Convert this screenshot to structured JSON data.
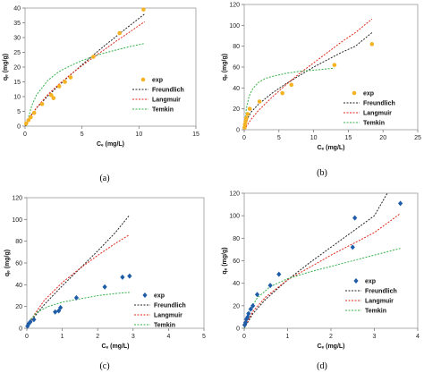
{
  "chart_data": [
    {
      "panel": "(a)",
      "type": "scatter",
      "xlabel": "Cₑ (mg/L)",
      "ylabel": "qₑ (mg/g)",
      "xlim": [
        0,
        15
      ],
      "ylim": [
        0,
        40
      ],
      "xticks": [
        0,
        5,
        10,
        15
      ],
      "yticks": [
        0,
        5,
        10,
        15,
        20,
        25,
        30,
        35,
        40
      ],
      "legend_position": "right",
      "series": [
        {
          "name": "exp",
          "kind": "points",
          "marker": "circle",
          "color": "#f5b324",
          "x": [
            0.1,
            0.3,
            0.5,
            0.8,
            1.5,
            2.3,
            2.5,
            3.0,
            3.5,
            4.0,
            6.0,
            8.3,
            10.4
          ],
          "y": [
            0.9,
            2.0,
            3.0,
            4.5,
            7.5,
            10.5,
            9.5,
            13.5,
            15.0,
            16.5,
            23.5,
            31.5,
            39.5
          ]
        },
        {
          "name": "Freundlich",
          "kind": "line",
          "dash": "2,1.5",
          "color": "#222222",
          "x": [
            0,
            0.2,
            0.5,
            1,
            2,
            3,
            4,
            5,
            6,
            7,
            8,
            9,
            10.5
          ],
          "y": [
            0,
            1.8,
            3.6,
            6.1,
            10.2,
            13.9,
            17.4,
            20.8,
            24.1,
            27.3,
            30.4,
            33.5,
            38.0
          ]
        },
        {
          "name": "Langmuir",
          "kind": "line",
          "dash": "2,1.5",
          "color": "#e0291b",
          "x": [
            0,
            0.2,
            0.5,
            1,
            2,
            3,
            4,
            5,
            6,
            7,
            8,
            9,
            10.5
          ],
          "y": [
            0,
            1.5,
            3.4,
            6.2,
            10.7,
            14.3,
            17.5,
            20.5,
            23.3,
            26.0,
            28.8,
            31.4,
            35.4
          ]
        },
        {
          "name": "Temkin",
          "kind": "line",
          "dash": "2,1.5",
          "color": "#36b14a",
          "x": [
            0.1,
            0.3,
            0.6,
            1,
            2,
            3,
            4,
            5,
            6,
            7,
            8,
            9,
            10.5
          ],
          "y": [
            0,
            3.0,
            7.0,
            10.5,
            15.5,
            18.5,
            20.5,
            22.2,
            23.6,
            24.8,
            25.8,
            26.8,
            28.0
          ]
        }
      ]
    },
    {
      "panel": "(b)",
      "type": "scatter",
      "xlabel": "Cₑ (mg/L)",
      "ylabel": "qₑ (mg/g)",
      "xlim": [
        0,
        25
      ],
      "ylim": [
        0,
        120
      ],
      "xticks": [
        0,
        5,
        10,
        15,
        20,
        25
      ],
      "yticks": [
        0,
        20,
        40,
        60,
        80,
        100,
        120
      ],
      "legend_position": "center-right",
      "series": [
        {
          "name": "exp",
          "kind": "points",
          "marker": "circle",
          "color": "#f5b324",
          "x": [
            0.05,
            0.1,
            0.2,
            0.3,
            0.5,
            0.8,
            2.2,
            5.5,
            6.8,
            13.0,
            18.4
          ],
          "y": [
            2,
            5,
            8,
            11,
            15,
            20,
            27,
            35,
            43,
            62,
            82
          ]
        },
        {
          "name": "Freundlich",
          "kind": "line",
          "dash": "2,1.5",
          "color": "#222222",
          "x": [
            0,
            0.5,
            1,
            2,
            4,
            6,
            8,
            10,
            12,
            14,
            16,
            18.4
          ],
          "y": [
            0,
            11,
            17,
            24,
            35,
            44,
            52,
            60,
            67,
            74,
            80,
            93
          ]
        },
        {
          "name": "Langmuir",
          "kind": "line",
          "dash": "2,1.5",
          "color": "#e0291b",
          "x": [
            0,
            0.5,
            1,
            2,
            4,
            6,
            8,
            10,
            12,
            14,
            16,
            18.4
          ],
          "y": [
            0,
            5,
            10,
            18,
            31,
            43,
            54,
            64,
            74,
            84,
            93,
            106
          ]
        },
        {
          "name": "Temkin",
          "kind": "line",
          "dash": "2,1.5",
          "color": "#36b14a",
          "x": [
            0.05,
            0.3,
            0.7,
            1.2,
            2,
            3,
            4,
            6,
            8,
            10,
            13
          ],
          "y": [
            0,
            20,
            32,
            39,
            45,
            49,
            51,
            54,
            56,
            57,
            59
          ]
        }
      ]
    },
    {
      "panel": "(c)",
      "type": "scatter",
      "xlabel": "Cₑ (mg/L)",
      "ylabel": "qₑ (mg/g)",
      "xlim": [
        0,
        5
      ],
      "ylim": [
        0,
        120
      ],
      "xticks": [
        0,
        1,
        2,
        3,
        4,
        5
      ],
      "yticks": [
        0,
        20,
        40,
        60,
        80,
        100,
        120
      ],
      "legend_position": "right",
      "series": [
        {
          "name": "exp",
          "kind": "points",
          "marker": "diamond",
          "color": "#1f5ca8",
          "x": [
            0.02,
            0.05,
            0.1,
            0.2,
            0.8,
            0.9,
            0.95,
            1.4,
            2.2,
            2.7,
            2.9
          ],
          "y": [
            2,
            4,
            6,
            8,
            15,
            16,
            19,
            28,
            38,
            47,
            48
          ]
        },
        {
          "name": "Freundlich",
          "kind": "line",
          "dash": "2,1.5",
          "color": "#222222",
          "x": [
            0,
            0.2,
            0.5,
            1,
            1.5,
            2,
            2.5,
            2.9
          ],
          "y": [
            0,
            10,
            22,
            39,
            55,
            71,
            88,
            104
          ]
        },
        {
          "name": "Langmuir",
          "kind": "line",
          "dash": "2,1.5",
          "color": "#e0291b",
          "x": [
            0,
            0.2,
            0.5,
            1,
            1.5,
            2,
            2.5,
            2.9
          ],
          "y": [
            0,
            12,
            26,
            42,
            55,
            67,
            78,
            86
          ]
        },
        {
          "name": "Temkin",
          "kind": "line",
          "dash": "2,1.5",
          "color": "#36b14a",
          "x": [
            0.02,
            0.1,
            0.3,
            0.6,
            1,
            1.5,
            2,
            2.5,
            2.9
          ],
          "y": [
            0,
            8,
            15,
            20,
            24,
            27,
            30,
            32,
            33
          ]
        }
      ]
    },
    {
      "panel": "(d)",
      "type": "scatter",
      "xlabel": "Cₑ (mg/L)",
      "ylabel": "qₑ (mg/g)",
      "xlim": [
        0,
        4
      ],
      "ylim": [
        0,
        120
      ],
      "xticks": [
        0,
        1,
        2,
        3,
        4
      ],
      "yticks": [
        0,
        20,
        40,
        60,
        80,
        100,
        120
      ],
      "legend_position": "bottom-right",
      "series": [
        {
          "name": "exp",
          "kind": "points",
          "marker": "diamond",
          "color": "#1f5ca8",
          "x": [
            0.01,
            0.03,
            0.05,
            0.08,
            0.1,
            0.15,
            0.2,
            0.3,
            0.6,
            0.8,
            2.5,
            2.55,
            3.6
          ],
          "y": [
            3,
            5,
            8,
            10,
            13,
            17,
            20,
            30,
            38,
            48,
            72,
            98,
            111
          ]
        },
        {
          "name": "Freundlich",
          "kind": "line",
          "dash": "2,1.5",
          "color": "#222222",
          "x": [
            0,
            0.2,
            0.5,
            1,
            1.5,
            2,
            2.5,
            3,
            3.3
          ],
          "y": [
            0,
            13,
            26,
            43,
            58,
            72,
            86,
            100,
            120
          ]
        },
        {
          "name": "Langmuir",
          "kind": "line",
          "dash": "2,1.5",
          "color": "#e0291b",
          "x": [
            0,
            0.2,
            0.5,
            1,
            1.5,
            2,
            2.5,
            3,
            3.6
          ],
          "y": [
            0,
            15,
            28,
            43,
            54,
            65,
            75,
            85,
            102
          ]
        },
        {
          "name": "Temkin",
          "kind": "line",
          "dash": "2,1.5",
          "color": "#36b14a",
          "x": [
            0.01,
            0.1,
            0.3,
            0.6,
            1,
            1.5,
            2,
            2.5,
            3,
            3.6
          ],
          "y": [
            0,
            14,
            27,
            37,
            44,
            50,
            55,
            60,
            65,
            71
          ]
        }
      ]
    }
  ]
}
